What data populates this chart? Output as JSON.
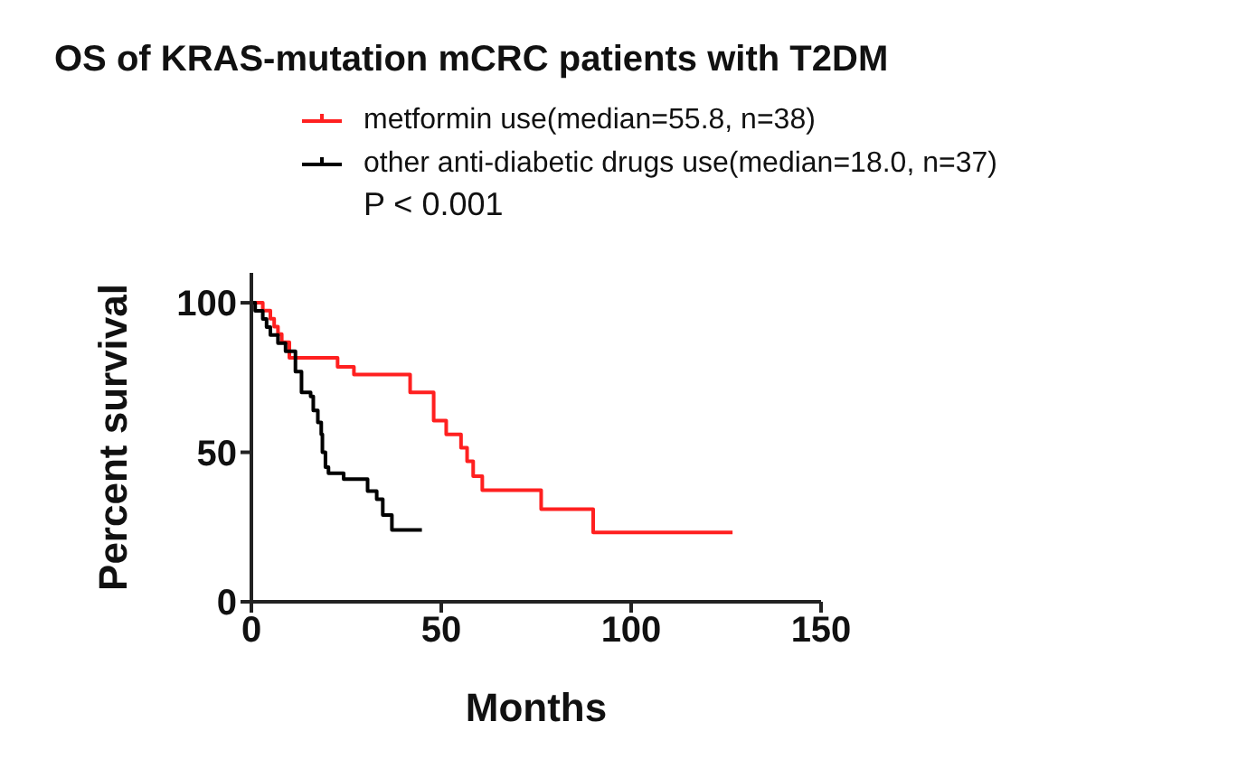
{
  "chart_data": {
    "type": "step",
    "title": "OS of KRAS-mutation mCRC patients with T2DM",
    "xlabel": "Months",
    "ylabel": "Percent survival",
    "xlim": [
      0,
      150
    ],
    "xticks": [
      0,
      50,
      100,
      150
    ],
    "ylim": [
      0,
      110
    ],
    "yticks": [
      0,
      50,
      100
    ],
    "legend": "top right",
    "annotations": [
      "P < 0.001"
    ],
    "series": [
      {
        "name": "metformin use(median=55.8, n=38)",
        "color": "#ff2020",
        "x": [
          0,
          3,
          5,
          6,
          7,
          8,
          10,
          22.7,
          27,
          41.8,
          48,
          51.3,
          55.2,
          56.8,
          58.4,
          60.8,
          76.3,
          90,
          126.7
        ],
        "values": [
          100,
          97.4,
          94.7,
          92,
          89.5,
          86.8,
          81.6,
          78.6,
          76,
          70,
          60.6,
          56,
          51.5,
          47,
          42,
          37.3,
          31,
          23.2,
          23.2
        ]
      },
      {
        "name": "other anti-diabetic drugs use(median=18.0, n=37)",
        "color": "#000000",
        "x": [
          0,
          1,
          3,
          4,
          5,
          7,
          9,
          11.6,
          13.2,
          15.6,
          16.3,
          17.5,
          18.4,
          18.7,
          19.5,
          20.3,
          24.3,
          30.6,
          33,
          34.6,
          37,
          44.9
        ],
        "values": [
          100,
          97.3,
          94.6,
          91.9,
          89.2,
          86.5,
          83.8,
          77,
          70,
          68.7,
          64,
          60,
          56,
          50,
          45,
          43,
          41,
          37,
          34.3,
          29,
          24,
          24
        ]
      }
    ]
  }
}
